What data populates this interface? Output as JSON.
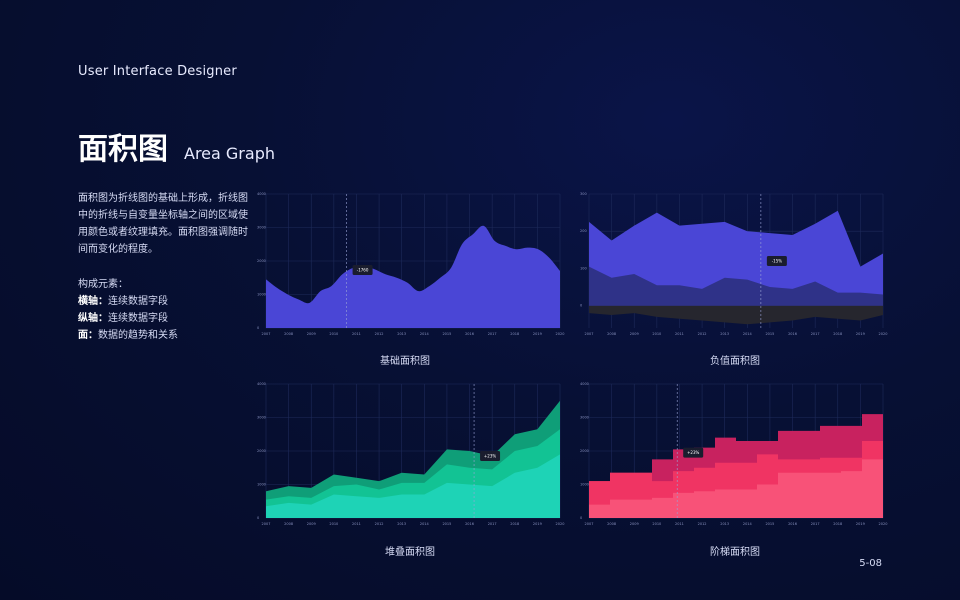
{
  "header": {
    "title": "User Interface Designer"
  },
  "heading": {
    "cn": "面积图",
    "en": "Area Graph"
  },
  "description": "面积图为折线图的基础上形成，折线图中的折线与自变量坐标轴之间的区域使用颜色或者纹理填充。面积图强调随时间而变化的程度。",
  "elements": {
    "label": "构成元素：",
    "x_key": "横轴：",
    "x_val": "连续数据字段",
    "y_key": "纵轴：",
    "y_val": "连续数据字段",
    "area_key": "面：",
    "area_val": "数据的趋势和关系"
  },
  "page_number": "5-08",
  "colors": {
    "background": "#060d2e",
    "grid": "#1e2a5a",
    "blue": "#4a46d6",
    "dark_area": "#26262e",
    "teal_dark": "#0f9e78",
    "teal_mid": "#12c394",
    "teal_light": "#1ed3b6",
    "pink_dark": "#c8225f",
    "pink_mid": "#f03463",
    "pink_light": "#f85278"
  },
  "chart_data": [
    {
      "type": "area",
      "caption": "基础面积图",
      "x_ticks": [
        "2007",
        "2008",
        "2009",
        "2010",
        "2011",
        "2012",
        "2013",
        "2014",
        "2015",
        "2016",
        "2017",
        "2018",
        "2019",
        "2020"
      ],
      "y_ticks": [
        "0",
        "1000",
        "2000",
        "3000",
        "4000"
      ],
      "ylim": [
        0,
        4000
      ],
      "x": [
        2007,
        2007.5,
        2008,
        2008.5,
        2009,
        2009.5,
        2010,
        2010.5,
        2011,
        2011.5,
        2012,
        2012.5,
        2013,
        2013.5,
        2014,
        2014.5,
        2015,
        2015.5,
        2016,
        2016.5,
        2017,
        2017.5,
        2018,
        2018.5,
        2019,
        2019.5,
        2020,
        2020.5
      ],
      "series": [
        {
          "values": [
            1450,
            1200,
            1000,
            850,
            750,
            1100,
            1250,
            1600,
            1800,
            1850,
            1750,
            1600,
            1500,
            1350,
            1100,
            1250,
            1500,
            1800,
            2500,
            2800,
            3050,
            2600,
            2450,
            2350,
            2400,
            2350,
            2100,
            1700
          ]
        }
      ],
      "annotation": {
        "x": 2010.7,
        "label": "-1760"
      }
    },
    {
      "type": "area",
      "caption": "负值面积图",
      "x_ticks": [
        "2007",
        "2008",
        "2009",
        "2010",
        "2011",
        "2012",
        "2013",
        "2014",
        "2015",
        "2016",
        "2017",
        "2018",
        "2019",
        "2020"
      ],
      "y_ticks": [
        "0",
        "100",
        "200",
        "300"
      ],
      "ylim": [
        -60,
        300
      ],
      "x": [
        2007,
        2008,
        2009,
        2010,
        2011,
        2012,
        2013,
        2014,
        2015,
        2016,
        2017,
        2018,
        2019,
        2020
      ],
      "series": [
        {
          "values": [
            225,
            175,
            215,
            250,
            215,
            220,
            225,
            200,
            195,
            190,
            220,
            255,
            105,
            140
          ]
        },
        {
          "values": [
            105,
            75,
            85,
            55,
            55,
            45,
            75,
            70,
            50,
            45,
            65,
            35,
            35,
            30
          ]
        },
        {
          "values": [
            -20,
            -25,
            -20,
            -30,
            -35,
            -40,
            -45,
            -50,
            -45,
            -40,
            -30,
            -35,
            -40,
            -25
          ]
        }
      ],
      "annotation": {
        "x": 2014.6,
        "label": "-15%"
      }
    },
    {
      "type": "area",
      "caption": "堆叠面积图",
      "x_ticks": [
        "2007",
        "2008",
        "2009",
        "2010",
        "2011",
        "2012",
        "2013",
        "2014",
        "2015",
        "2016",
        "2017",
        "2018",
        "2019",
        "2020"
      ],
      "y_ticks": [
        "0",
        "1000",
        "2000",
        "3000",
        "4000"
      ],
      "ylim": [
        0,
        4000
      ],
      "x": [
        2007,
        2008,
        2009,
        2010,
        2011,
        2012,
        2013,
        2014,
        2015,
        2016,
        2017,
        2018,
        2019,
        2020
      ],
      "series": [
        {
          "name": "base",
          "values": [
            350,
            450,
            400,
            700,
            650,
            600,
            700,
            700,
            1050,
            1000,
            950,
            1350,
            1500,
            1900
          ]
        },
        {
          "name": "middle",
          "values": [
            550,
            650,
            600,
            950,
            1000,
            850,
            1050,
            1050,
            1600,
            1500,
            1450,
            2000,
            2150,
            2650
          ]
        },
        {
          "name": "top",
          "values": [
            800,
            950,
            900,
            1300,
            1200,
            1100,
            1350,
            1300,
            2050,
            2000,
            1850,
            2500,
            2650,
            3500
          ]
        }
      ],
      "annotation": {
        "x": 2016.2,
        "label": "+23%"
      }
    },
    {
      "type": "area",
      "caption": "阶梯面积图",
      "x_ticks": [
        "2007",
        "2008",
        "2009",
        "2010",
        "2011",
        "2012",
        "2013",
        "2014",
        "2015",
        "2016",
        "2017",
        "2018",
        "2019",
        "2020"
      ],
      "y_ticks": [
        "0",
        "1000",
        "2000",
        "3000",
        "4000"
      ],
      "ylim": [
        0,
        4000
      ],
      "x": [
        2007,
        2008,
        2009,
        2010,
        2011,
        2012,
        2013,
        2014,
        2015,
        2016,
        2017,
        2018,
        2019,
        2020,
        2021
      ],
      "series": [
        {
          "name": "base",
          "values": [
            400,
            550,
            550,
            600,
            750,
            800,
            850,
            850,
            1000,
            1350,
            1350,
            1350,
            1400,
            1750,
            1750
          ]
        },
        {
          "name": "middle",
          "values": [
            1100,
            1350,
            1350,
            1100,
            1400,
            1500,
            1650,
            1650,
            1900,
            1750,
            1750,
            1800,
            1800,
            2300,
            2300
          ]
        },
        {
          "name": "top",
          "values": [
            1100,
            1350,
            1350,
            1750,
            2050,
            2100,
            2400,
            2300,
            2300,
            2600,
            2600,
            2750,
            2750,
            3100,
            3100
          ]
        }
      ],
      "annotation": {
        "x": 2011.2,
        "label": "+23%"
      }
    }
  ]
}
